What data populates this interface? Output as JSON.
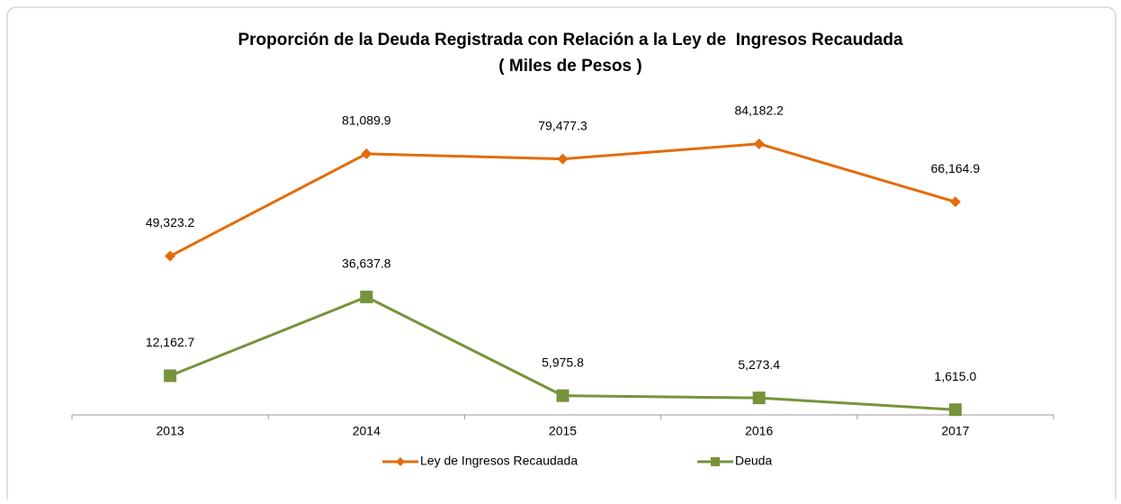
{
  "chart_data": {
    "type": "line",
    "title": "Proporción de la Deuda Registrada con Relación a la Ley de  Ingresos Recaudada",
    "subtitle": "( Miles de Pesos )",
    "categories": [
      "2013",
      "2014",
      "2015",
      "2016",
      "2017"
    ],
    "series": [
      {
        "name": "Ley de Ingresos Recaudada",
        "color": "#e36c0a",
        "marker": "diamond",
        "values": [
          49323.2,
          81089.9,
          79477.3,
          84182.2,
          66164.9
        ],
        "value_labels": [
          "49,323.2",
          "81,089.9",
          "79,477.3",
          "84,182.2",
          "66,164.9"
        ]
      },
      {
        "name": "Deuda",
        "color": "#77933c",
        "marker": "square",
        "values": [
          12162.7,
          36637.8,
          5975.8,
          5273.4,
          1615.0
        ],
        "value_labels": [
          "12,162.7",
          "36,637.8",
          "5,975.8",
          "5,273.4",
          "1,615.0"
        ]
      }
    ],
    "ylim": [
      0,
      90000
    ],
    "legend": "bottom"
  }
}
